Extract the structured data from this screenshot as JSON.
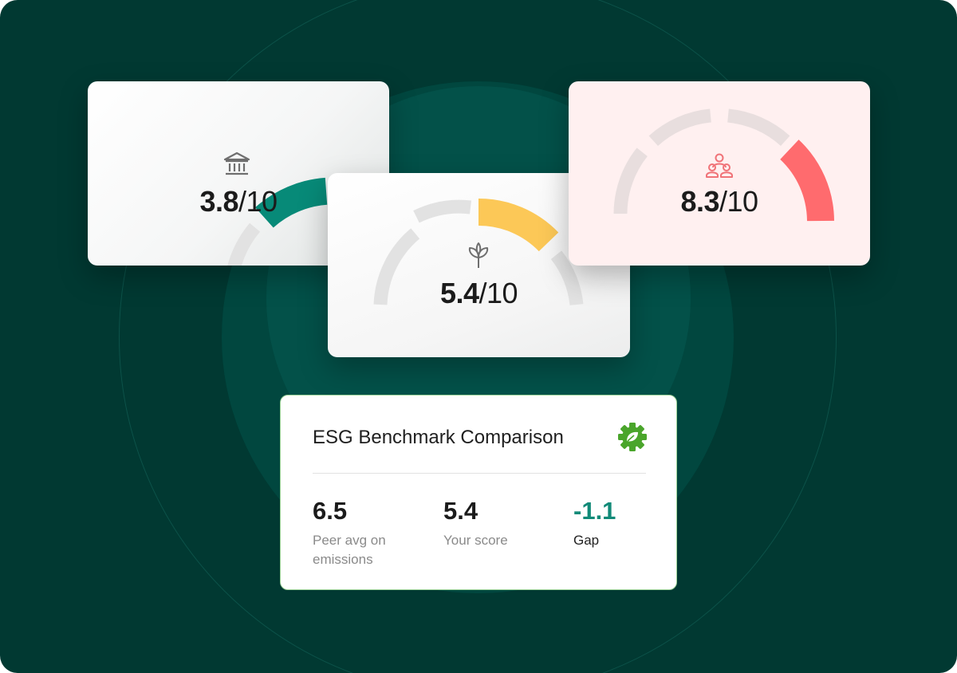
{
  "cards": [
    {
      "id": "governance",
      "score": "3.8",
      "denominator": "/10",
      "value": 3.8,
      "max": 10,
      "accent": "#078a78",
      "icon": "bank-icon"
    },
    {
      "id": "environmental",
      "score": "5.4",
      "denominator": "/10",
      "value": 5.4,
      "max": 10,
      "accent": "#fcc857",
      "icon": "plant-icon"
    },
    {
      "id": "social",
      "score": "8.3",
      "denominator": "/10",
      "value": 8.3,
      "max": 10,
      "accent": "#ff6b6e",
      "icon": "people-icon"
    }
  ],
  "benchmark": {
    "title": "ESG Benchmark Comparison",
    "icon": "gear-leaf-icon",
    "peer": {
      "value": "6.5",
      "label": "Peer avg on emissions"
    },
    "yours": {
      "value": "5.4",
      "label": "Your score"
    },
    "gap": {
      "value": "-1.1",
      "label": "Gap"
    }
  },
  "colors": {
    "background": "#013932",
    "gauge_track": "#e2e2e2",
    "social_track": "#e8dede",
    "gap_value": "#128a78",
    "badge": "#4aa52b"
  }
}
